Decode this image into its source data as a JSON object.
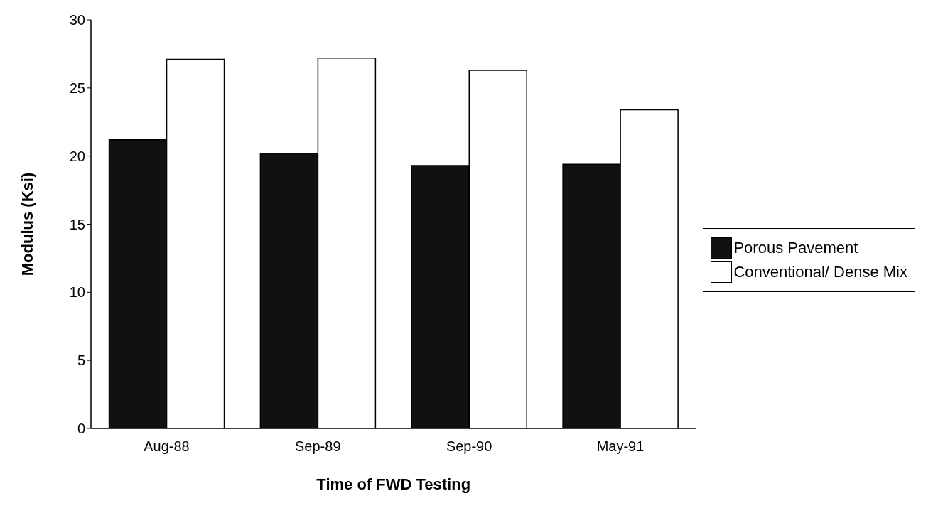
{
  "chart_data": {
    "type": "bar",
    "xlabel": "Time of FWD Testing",
    "ylabel": "Modulus (Ksi)",
    "categories": [
      "Aug-88",
      "Sep-89",
      "Sep-90",
      "May-91"
    ],
    "series": [
      {
        "name": "Porous Pavement",
        "color": "#111111",
        "values": [
          21.2,
          20.2,
          19.3,
          19.4
        ]
      },
      {
        "name": "Conventional/ Dense Mix",
        "color": "#ffffff",
        "values": [
          27.1,
          27.2,
          26.3,
          23.4
        ]
      }
    ],
    "ylim": [
      0,
      30
    ],
    "yticks": [
      0,
      5,
      10,
      15,
      20,
      25,
      30
    ],
    "grid": false,
    "legend": "right"
  }
}
